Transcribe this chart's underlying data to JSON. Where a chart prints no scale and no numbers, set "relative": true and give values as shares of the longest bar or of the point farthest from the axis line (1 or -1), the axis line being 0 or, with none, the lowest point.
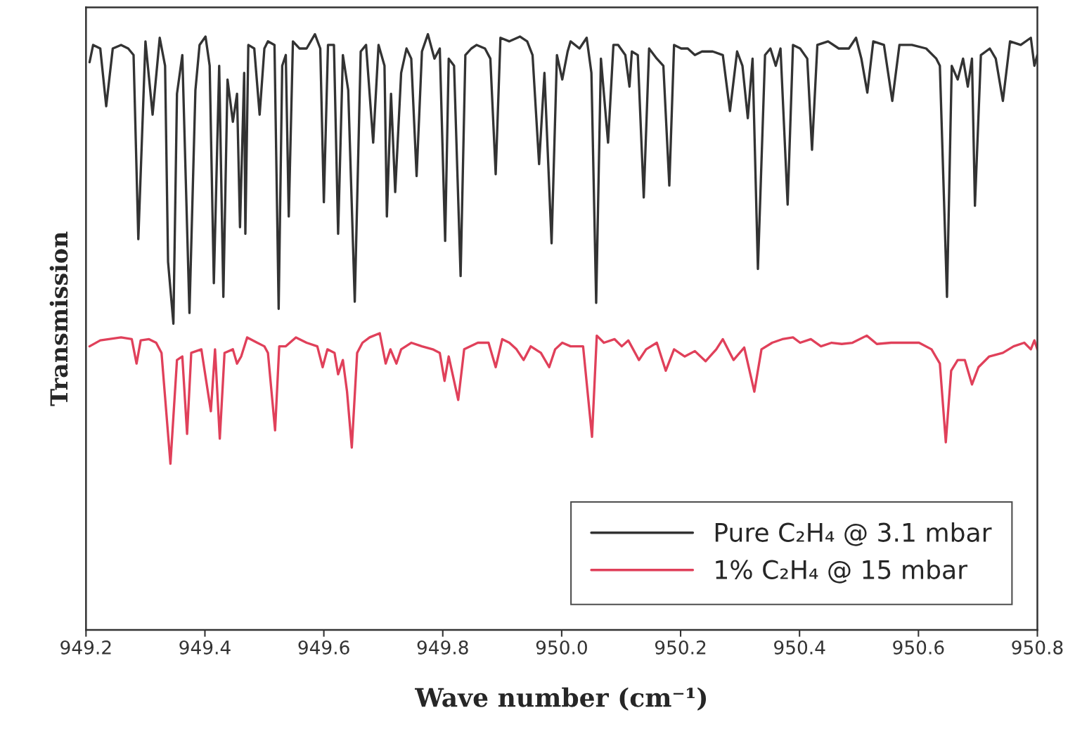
{
  "chart_data": {
    "type": "line",
    "xlabel": "Wave number (cm⁻¹)",
    "ylabel": "Transmission",
    "relative": true,
    "tick_labels": "x",
    "xlim": [
      949.2,
      950.8
    ],
    "xticks": [
      949.2,
      949.4,
      949.6,
      949.8,
      {
        "value": 950,
        "label": "950.0"
      },
      950.2,
      950.4,
      950.6,
      950.8
    ],
    "grid": false,
    "legend": "bottom right",
    "line_style": "solid",
    "marker": "none",
    "series": [
      {
        "name": "Pure C₂H₄ @ 3.1 mbar",
        "color": "#333333",
        "x": [
          949.206,
          949.212,
          949.224,
          949.234,
          949.245,
          949.259,
          949.271,
          949.28,
          949.288,
          949.3,
          949.312,
          949.324,
          949.333,
          949.338,
          949.347,
          949.353,
          949.362,
          949.374,
          949.384,
          949.391,
          949.401,
          949.408,
          949.415,
          949.424,
          949.431,
          949.438,
          949.447,
          949.454,
          949.459,
          949.466,
          949.468,
          949.473,
          949.483,
          949.492,
          949.5,
          949.506,
          949.517,
          949.524,
          949.53,
          949.536,
          949.541,
          949.548,
          949.559,
          949.571,
          949.585,
          949.594,
          949.6,
          949.607,
          949.617,
          949.624,
          949.632,
          949.641,
          949.652,
          949.662,
          949.671,
          949.683,
          949.692,
          949.702,
          949.706,
          949.713,
          949.72,
          949.73,
          949.739,
          949.747,
          949.756,
          949.765,
          949.775,
          949.786,
          949.795,
          949.804,
          949.81,
          949.819,
          949.83,
          949.838,
          949.848,
          949.857,
          949.871,
          949.88,
          949.889,
          949.897,
          949.912,
          949.93,
          949.942,
          949.951,
          949.962,
          949.971,
          949.983,
          949.992,
          950.001,
          950.01,
          950.015,
          950.03,
          950.042,
          950.05,
          950.058,
          950.066,
          950.078,
          950.087,
          950.095,
          950.107,
          950.114,
          950.118,
          950.128,
          950.138,
          950.147,
          950.16,
          950.171,
          950.181,
          950.189,
          950.201,
          950.212,
          950.224,
          950.236,
          950.254,
          950.271,
          950.283,
          950.295,
          950.304,
          950.313,
          950.321,
          950.33,
          950.342,
          950.351,
          950.36,
          950.368,
          950.38,
          950.389,
          950.401,
          950.413,
          950.421,
          950.43,
          950.448,
          950.466,
          950.483,
          950.495,
          950.504,
          950.514,
          950.524,
          950.542,
          950.556,
          950.568,
          950.589,
          950.613,
          950.63,
          950.636,
          950.648,
          950.656,
          950.666,
          950.675,
          950.683,
          950.69,
          950.695,
          950.705,
          950.72,
          950.73,
          950.742,
          950.754,
          950.772,
          950.789,
          950.795,
          950.8
        ],
        "values": [
          0.953,
          0.982,
          0.976,
          0.879,
          0.976,
          0.982,
          0.976,
          0.965,
          0.656,
          0.988,
          0.865,
          0.994,
          0.947,
          0.618,
          0.514,
          0.9,
          0.965,
          0.532,
          0.906,
          0.982,
          0.996,
          0.947,
          0.582,
          0.947,
          0.559,
          0.924,
          0.853,
          0.9,
          0.676,
          0.935,
          0.665,
          0.982,
          0.976,
          0.865,
          0.976,
          0.988,
          0.982,
          0.539,
          0.947,
          0.965,
          0.694,
          0.988,
          0.976,
          0.976,
          1.0,
          0.976,
          0.718,
          0.982,
          0.982,
          0.665,
          0.965,
          0.906,
          0.551,
          0.971,
          0.982,
          0.818,
          0.982,
          0.947,
          0.694,
          0.9,
          0.735,
          0.935,
          0.976,
          0.959,
          0.762,
          0.971,
          1.0,
          0.959,
          0.976,
          0.653,
          0.959,
          0.947,
          0.594,
          0.965,
          0.976,
          0.982,
          0.976,
          0.959,
          0.765,
          0.994,
          0.988,
          0.996,
          0.988,
          0.965,
          0.782,
          0.935,
          0.649,
          0.965,
          0.924,
          0.971,
          0.988,
          0.976,
          0.994,
          0.935,
          0.549,
          0.959,
          0.818,
          0.982,
          0.982,
          0.965,
          0.912,
          0.971,
          0.965,
          0.726,
          0.976,
          0.959,
          0.947,
          0.746,
          0.982,
          0.976,
          0.976,
          0.965,
          0.971,
          0.971,
          0.965,
          0.871,
          0.971,
          0.947,
          0.859,
          0.959,
          0.606,
          0.965,
          0.976,
          0.947,
          0.976,
          0.714,
          0.982,
          0.976,
          0.959,
          0.806,
          0.982,
          0.988,
          0.976,
          0.976,
          0.994,
          0.959,
          0.902,
          0.988,
          0.982,
          0.888,
          0.982,
          0.982,
          0.976,
          0.959,
          0.947,
          0.559,
          0.947,
          0.924,
          0.959,
          0.912,
          0.959,
          0.712,
          0.965,
          0.976,
          0.959,
          0.888,
          0.988,
          0.982,
          0.994,
          0.947,
          0.965
        ]
      },
      {
        "name": "1% C₂H₄ @ 15 mbar",
        "color": "#e0405a",
        "x": [
          949.206,
          949.224,
          949.259,
          949.277,
          949.285,
          949.292,
          949.306,
          949.318,
          949.327,
          949.342,
          949.353,
          949.362,
          949.37,
          949.377,
          949.394,
          949.41,
          949.417,
          949.425,
          949.433,
          949.447,
          949.454,
          949.461,
          949.471,
          949.488,
          949.5,
          949.506,
          949.518,
          949.525,
          949.536,
          949.553,
          949.571,
          949.589,
          949.598,
          949.606,
          949.618,
          949.624,
          949.632,
          949.639,
          949.647,
          949.656,
          949.665,
          949.677,
          949.694,
          949.704,
          949.712,
          949.722,
          949.73,
          949.747,
          949.765,
          949.783,
          949.795,
          949.803,
          949.81,
          949.826,
          949.836,
          949.859,
          949.877,
          949.889,
          949.9,
          949.912,
          949.924,
          949.936,
          949.948,
          949.965,
          949.979,
          949.989,
          950.001,
          950.015,
          950.036,
          950.051,
          950.059,
          950.071,
          950.089,
          950.101,
          950.112,
          950.13,
          950.142,
          950.16,
          950.175,
          950.189,
          950.207,
          950.224,
          950.242,
          950.26,
          950.271,
          950.289,
          950.307,
          950.324,
          950.336,
          950.354,
          950.371,
          950.389,
          950.401,
          950.419,
          950.436,
          950.454,
          950.471,
          950.489,
          950.513,
          950.53,
          950.554,
          950.577,
          950.601,
          950.622,
          950.636,
          950.646,
          950.655,
          950.666,
          950.678,
          950.69,
          950.701,
          950.719,
          950.742,
          950.76,
          950.778,
          950.789,
          950.795,
          950.8
        ],
        "values": [
          0.476,
          0.486,
          0.491,
          0.488,
          0.447,
          0.486,
          0.488,
          0.482,
          0.465,
          0.279,
          0.453,
          0.459,
          0.329,
          0.465,
          0.471,
          0.367,
          0.471,
          0.321,
          0.465,
          0.471,
          0.447,
          0.459,
          0.491,
          0.482,
          0.476,
          0.465,
          0.335,
          0.476,
          0.476,
          0.491,
          0.482,
          0.476,
          0.441,
          0.471,
          0.465,
          0.429,
          0.453,
          0.4,
          0.306,
          0.465,
          0.482,
          0.491,
          0.498,
          0.447,
          0.471,
          0.447,
          0.471,
          0.482,
          0.476,
          0.471,
          0.465,
          0.418,
          0.459,
          0.386,
          0.471,
          0.482,
          0.482,
          0.441,
          0.488,
          0.482,
          0.471,
          0.453,
          0.476,
          0.465,
          0.441,
          0.471,
          0.482,
          0.476,
          0.476,
          0.324,
          0.494,
          0.482,
          0.488,
          0.476,
          0.486,
          0.453,
          0.471,
          0.482,
          0.435,
          0.471,
          0.459,
          0.468,
          0.451,
          0.471,
          0.488,
          0.453,
          0.474,
          0.4,
          0.471,
          0.482,
          0.488,
          0.491,
          0.482,
          0.488,
          0.476,
          0.482,
          0.48,
          0.482,
          0.494,
          0.48,
          0.482,
          0.482,
          0.482,
          0.471,
          0.447,
          0.315,
          0.435,
          0.453,
          0.453,
          0.412,
          0.441,
          0.459,
          0.465,
          0.476,
          0.482,
          0.471,
          0.486,
          0.471
        ]
      }
    ]
  }
}
